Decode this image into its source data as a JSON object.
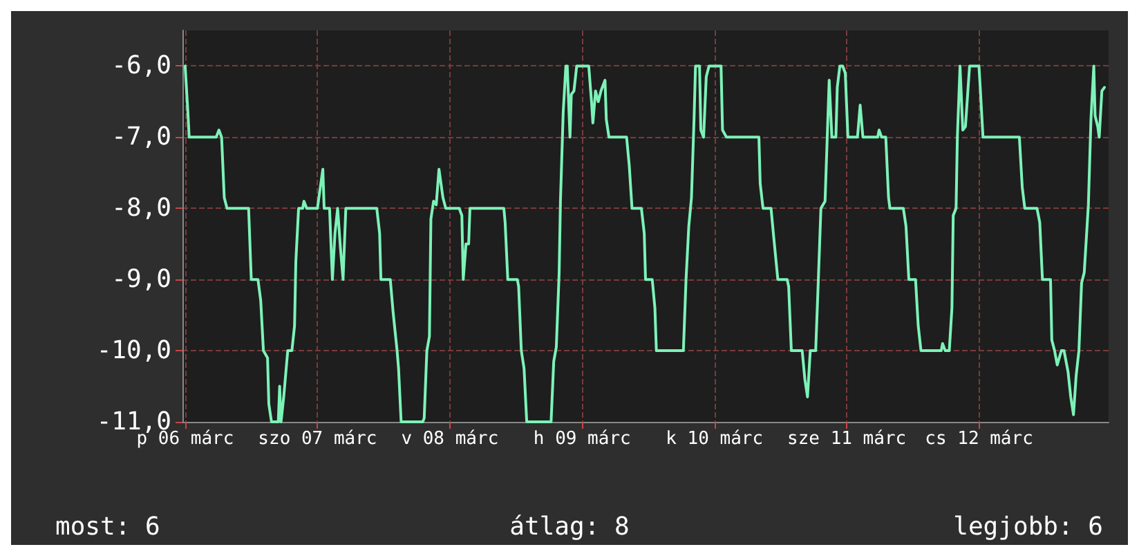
{
  "chart_data": {
    "type": "line",
    "x": [
      "--03-06T09:29",
      "--03-06T09:59",
      "--03-06T10:13",
      "--03-06T15:07",
      "--03-06T15:37",
      "--03-06T16:06",
      "--03-06T16:35",
      "--03-06T17:05",
      "--03-06T21:00",
      "--03-06T21:29",
      "--03-06T22:42",
      "--03-06T23:12",
      "--03-06T23:41",
      "--03-07T00:26",
      "--03-07T00:40",
      "--03-07T01:09",
      "--03-07T02:23",
      "--03-07T02:38",
      "--03-07T02:53",
      "--03-07T03:22",
      "--03-07T04:06",
      "--03-07T04:51",
      "--03-07T05:20",
      "--03-07T05:34",
      "--03-07T06:04",
      "--03-07T06:48",
      "--03-07T07:02",
      "--03-07T07:32",
      "--03-07T09:29",
      "--03-07T09:45",
      "--03-07T10:28",
      "--03-07T10:42",
      "--03-07T11:41",
      "--03-07T12:12",
      "--03-07T12:40",
      "--03-07T13:09",
      "--03-07T13:39",
      "--03-07T14:08",
      "--03-07T14:38",
      "--03-07T20:15",
      "--03-07T20:46",
      "--03-07T21:00",
      "--03-07T22:42",
      "--03-07T23:12",
      "--03-07T23:56",
      "--03-08T00:12",
      "--03-08T00:40",
      "--03-08T04:35",
      "--03-08T04:51",
      "--03-08T05:20",
      "--03-08T05:48",
      "--03-08T06:04",
      "--03-08T06:33",
      "--03-08T07:02",
      "--03-08T07:32",
      "--03-08T08:15",
      "--03-08T08:46",
      "--03-08T11:12",
      "--03-08T11:41",
      "--03-08T11:56",
      "--03-08T12:26",
      "--03-08T12:55",
      "--03-08T13:09",
      "--03-08T19:18",
      "--03-08T19:32",
      "--03-08T20:01",
      "--03-08T21:45",
      "--03-08T21:59",
      "--03-08T22:28",
      "--03-08T22:58",
      "--03-08T23:27",
      "--03-09T03:52",
      "--03-09T04:21",
      "--03-09T04:49",
      "--03-09T05:20",
      "--03-09T05:34",
      "--03-09T06:04",
      "--03-09T06:33",
      "--03-09T06:48",
      "--03-09T07:18",
      "--03-09T07:32",
      "--03-09T08:01",
      "--03-09T08:31",
      "--03-09T10:42",
      "--03-09T11:12",
      "--03-09T11:27",
      "--03-09T11:56",
      "--03-09T12:26",
      "--03-09T12:55",
      "--03-09T13:39",
      "--03-09T13:53",
      "--03-09T14:22",
      "--03-09T17:34",
      "--03-09T18:03",
      "--03-09T18:33",
      "--03-09T20:15",
      "--03-09T20:46",
      "--03-09T21:00",
      "--03-09T22:13",
      "--03-09T22:42",
      "--03-09T22:58",
      "--03-10T03:52",
      "--03-10T04:21",
      "--03-10T04:51",
      "--03-10T05:20",
      "--03-10T05:48",
      "--03-10T06:04",
      "--03-10T06:48",
      "--03-10T07:02",
      "--03-10T07:32",
      "--03-10T08:01",
      "--03-10T08:31",
      "--03-10T10:42",
      "--03-10T10:58",
      "--03-10T11:41",
      "--03-10T17:34",
      "--03-10T17:48",
      "--03-10T18:19",
      "--03-10T19:46",
      "--03-10T20:15",
      "--03-10T21:00",
      "--03-10T22:42",
      "--03-10T22:58",
      "--03-10T23:27",
      "--03-11T01:25",
      "--03-11T01:54",
      "--03-11T02:23",
      "--03-11T02:53",
      "--03-11T03:52",
      "--03-11T04:21",
      "--03-11T04:49",
      "--03-11T05:34",
      "--03-11T06:03",
      "--03-11T06:19",
      "--03-11T06:48",
      "--03-11T07:32",
      "--03-11T07:47",
      "--03-11T08:15",
      "--03-11T08:46",
      "--03-11T09:14",
      "--03-11T09:43",
      "--03-11T11:27",
      "--03-11T11:56",
      "--03-11T12:26",
      "--03-11T15:07",
      "--03-11T15:22",
      "--03-11T15:50",
      "--03-11T16:35",
      "--03-11T17:05",
      "--03-11T17:20",
      "--03-11T19:46",
      "--03-11T20:15",
      "--03-11T20:46",
      "--03-11T21:59",
      "--03-11T22:28",
      "--03-11T22:58",
      "--03-12T02:38",
      "--03-12T02:53",
      "--03-12T03:22",
      "--03-12T04:06",
      "--03-12T04:35",
      "--03-12T04:49",
      "--03-12T05:20",
      "--03-12T05:34",
      "--03-12T06:03",
      "--03-12T06:33",
      "--03-12T07:02",
      "--03-12T07:47",
      "--03-12T09:29",
      "--03-12T09:45",
      "--03-12T10:13",
      "--03-12T16:49",
      "--03-12T17:20",
      "--03-12T17:48",
      "--03-12T20:01",
      "--03-12T20:31",
      "--03-12T21:00",
      "--03-12T22:28",
      "--03-12T22:42",
      "--03-12T23:12",
      "--03-12T23:41",
      "--03-13T00:26",
      "--03-13T00:55",
      "--03-13T01:39",
      "--03-13T02:08",
      "--03-13T02:38",
      "--03-13T03:07",
      "--03-13T03:37",
      "--03-13T04:06",
      "--03-13T04:35",
      "--03-13T05:20",
      "--03-13T05:48",
      "--03-13T06:19",
      "--03-13T06:33",
      "--03-13T07:02",
      "--03-13T07:18",
      "--03-13T07:47",
      "--03-13T08:15"
    ],
    "series": [
      {
        "color": "#7df2b8",
        "values": [
          -6,
          -6.65,
          -7,
          -7,
          -6.9,
          -7,
          -7.85,
          -8,
          -8,
          -9,
          -9,
          -9.3,
          -10,
          -10.1,
          -10.75,
          -11,
          -11,
          -10.5,
          -11,
          -10.65,
          -10,
          -10,
          -9.65,
          -8.75,
          -8,
          -8,
          -7.9,
          -8,
          -8,
          -7.85,
          -7.45,
          -8,
          -8,
          -9,
          -8.35,
          -8,
          -8.55,
          -9,
          -8,
          -8,
          -8.35,
          -9,
          -9,
          -9.45,
          -10,
          -10.25,
          -11,
          -11,
          -10.95,
          -10,
          -9.8,
          -8.15,
          -7.9,
          -7.95,
          -7.45,
          -7.85,
          -8,
          -8,
          -8.1,
          -9,
          -8.5,
          -8.5,
          -8,
          -8,
          -8.2,
          -9,
          -9,
          -9.1,
          -10,
          -10.25,
          -11,
          -11,
          -10.15,
          -9.95,
          -8.9,
          -7.9,
          -6.65,
          -6,
          -6,
          -7,
          -6.4,
          -6.35,
          -6,
          -6,
          -6.5,
          -6.8,
          -6.35,
          -6.5,
          -6.35,
          -6.2,
          -6.75,
          -7,
          -7,
          -7.4,
          -8,
          -8,
          -8.35,
          -9,
          -9,
          -9.4,
          -10,
          -10,
          -9,
          -8.25,
          -7.85,
          -6.75,
          -6,
          -6,
          -6.9,
          -7,
          -6.15,
          -6,
          -6,
          -6.9,
          -7,
          -7,
          -7.65,
          -8,
          -8,
          -8.4,
          -9,
          -9,
          -9.1,
          -10,
          -10,
          -10.4,
          -10.65,
          -10,
          -10,
          -9,
          -8,
          -7.9,
          -6.8,
          -6.2,
          -7,
          -7,
          -6.3,
          -6,
          -6,
          -6.1,
          -7,
          -7,
          -6.55,
          -7,
          -7,
          -6.9,
          -7,
          -7,
          -7.85,
          -8,
          -8,
          -8.25,
          -9,
          -9,
          -9.65,
          -10,
          -10,
          -9.9,
          -10,
          -10,
          -9.4,
          -8.1,
          -8,
          -7,
          -6,
          -6.9,
          -6.85,
          -6,
          -6,
          -6.35,
          -7,
          -7,
          -7.7,
          -8,
          -8,
          -8.2,
          -9,
          -9,
          -9.85,
          -10,
          -10.2,
          -10,
          -10,
          -10.3,
          -10.65,
          -10.9,
          -10.35,
          -10,
          -9.05,
          -8.9,
          -7.95,
          -6.75,
          -6,
          -6.7,
          -6.85,
          -7,
          -6.35,
          -6.3
        ]
      }
    ],
    "xlim": [
      "--03-06T09:00",
      "--03-13T09:00"
    ],
    "xticks": [
      {
        "value": "--03-06T09:30",
        "label": "p 06 márc"
      },
      {
        "value": "--03-07T09:30",
        "label": "szo 07 márc"
      },
      {
        "value": "--03-08T09:30",
        "label": "v 08 márc"
      },
      {
        "value": "--03-09T09:30",
        "label": "h 09 márc"
      },
      {
        "value": "--03-10T09:30",
        "label": "k 10 márc"
      },
      {
        "value": "--03-11T09:30",
        "label": "sze 11 márc"
      },
      {
        "value": "--03-12T09:30",
        "label": "cs 12 márc"
      }
    ],
    "ylim": [
      -11,
      -5.5
    ],
    "yticks": [
      {
        "value": -11,
        "label": "-11,0"
      },
      {
        "value": -10,
        "label": "-10,0"
      },
      {
        "value": -9,
        "label": "-9,0"
      },
      {
        "value": -8,
        "label": "-8,0"
      },
      {
        "value": -7,
        "label": "-7,0"
      },
      {
        "value": -6,
        "label": "-6,0"
      }
    ],
    "grid": true,
    "marker": "none",
    "line_style": "solid",
    "annotations": [
      "most: 6",
      "átlag: 8",
      "legjobb: 6"
    ]
  }
}
